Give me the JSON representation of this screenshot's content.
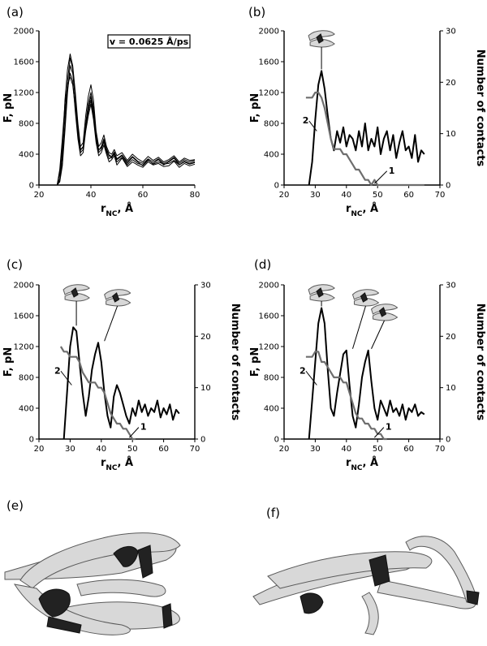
{
  "panel_labels": {
    "a": "(a)",
    "b": "(b)",
    "c": "(c)",
    "d": "(d)",
    "e": "(e)",
    "f": "(f)"
  },
  "velocity_label": "v = 0.0625 Å/ps",
  "curve_labels": {
    "one": "1",
    "two": "2"
  },
  "chart_data": [
    {
      "id": "a",
      "type": "line",
      "ylabel": "F, pN",
      "xlabel": "r_NC, Å",
      "xlim": [
        20,
        80
      ],
      "ylim": [
        0,
        2000
      ],
      "xticks": [
        20,
        40,
        60,
        80
      ],
      "yticks": [
        0,
        400,
        800,
        1200,
        1600,
        2000
      ],
      "annotation": "v = 0.0625 Å/ps",
      "series": [
        {
          "x": [
            27,
            28,
            29,
            30,
            31,
            32,
            33,
            34,
            35,
            36,
            37,
            38,
            39,
            40,
            41,
            42,
            43,
            44,
            45,
            46,
            47,
            48,
            49,
            50,
            52,
            54,
            56,
            58,
            60,
            62,
            64,
            66,
            68,
            70,
            72,
            74,
            76,
            78,
            80
          ],
          "y": [
            0,
            50,
            300,
            800,
            1350,
            1650,
            1500,
            1100,
            700,
            450,
            500,
            800,
            1050,
            1200,
            1000,
            650,
            450,
            500,
            600,
            450,
            380,
            350,
            420,
            330,
            380,
            280,
            360,
            300,
            250,
            320,
            280,
            330,
            260,
            300,
            350,
            260,
            310,
            280,
            300
          ]
        },
        {
          "x": [
            27,
            28,
            29,
            30,
            31,
            32,
            33,
            34,
            35,
            36,
            37,
            38,
            39,
            40,
            41,
            42,
            43,
            44,
            45,
            46,
            47,
            48,
            49,
            50,
            52,
            54,
            56,
            58,
            60,
            62,
            64,
            66,
            68,
            70,
            72,
            74,
            76,
            78,
            80
          ],
          "y": [
            0,
            150,
            500,
            950,
            1250,
            1450,
            1350,
            950,
            600,
            380,
            420,
            700,
            900,
            1050,
            850,
            550,
            380,
            420,
            520,
            400,
            300,
            330,
            380,
            260,
            350,
            240,
            300,
            260,
            230,
            300,
            260,
            280,
            240,
            250,
            310,
            230,
            280,
            250,
            270
          ]
        },
        {
          "x": [
            27,
            28,
            29,
            30,
            31,
            32,
            33,
            34,
            35,
            36,
            37,
            38,
            39,
            40,
            41,
            42,
            43,
            44,
            45,
            46,
            47,
            48,
            49,
            50,
            52,
            54,
            56,
            58,
            60,
            62,
            64,
            66,
            68,
            70,
            72,
            74,
            76,
            78,
            80
          ],
          "y": [
            0,
            80,
            400,
            1100,
            1500,
            1700,
            1550,
            1200,
            800,
            500,
            550,
            900,
            1150,
            1300,
            1100,
            700,
            500,
            550,
            650,
            500,
            420,
            400,
            460,
            380,
            420,
            320,
            400,
            340,
            300,
            370,
            320,
            360,
            300,
            330,
            380,
            300,
            350,
            320,
            330
          ]
        },
        {
          "x": [
            27,
            28,
            29,
            30,
            31,
            32,
            33,
            34,
            35,
            36,
            37,
            38,
            39,
            40,
            41,
            42,
            43,
            44,
            45,
            46,
            47,
            48,
            49,
            50,
            52,
            54,
            56,
            58,
            60,
            62,
            64,
            66,
            68,
            70,
            72,
            74,
            76,
            78,
            80
          ],
          "y": [
            0,
            200,
            600,
            1050,
            1300,
            1400,
            1300,
            1000,
            650,
            420,
            460,
            750,
            950,
            1100,
            900,
            600,
            420,
            460,
            560,
            430,
            340,
            360,
            400,
            300,
            360,
            260,
            330,
            280,
            260,
            330,
            270,
            300,
            270,
            280,
            320,
            260,
            300,
            270,
            290
          ]
        },
        {
          "x": [
            27,
            28,
            29,
            30,
            31,
            32,
            33,
            34,
            35,
            36,
            37,
            38,
            39,
            40,
            41,
            42,
            43,
            44,
            45,
            46,
            47,
            48,
            49,
            50,
            52,
            54,
            56,
            58,
            60,
            62,
            64,
            66,
            68,
            70,
            72,
            74,
            76,
            78,
            80
          ],
          "y": [
            0,
            40,
            250,
            700,
            1200,
            1550,
            1450,
            1150,
            760,
            470,
            480,
            780,
            1000,
            1150,
            950,
            620,
            460,
            480,
            580,
            470,
            390,
            370,
            430,
            340,
            390,
            300,
            370,
            310,
            280,
            340,
            300,
            340,
            280,
            310,
            360,
            280,
            330,
            300,
            320
          ]
        }
      ]
    },
    {
      "id": "b",
      "type": "line",
      "ylabel": "F, pN",
      "y2label": "Number of contacts",
      "xlabel": "r_NC, Å",
      "xlim": [
        20,
        70
      ],
      "ylim": [
        0,
        2000
      ],
      "y2lim": [
        0,
        30
      ],
      "xticks": [
        20,
        30,
        40,
        50,
        60,
        70
      ],
      "yticks": [
        0,
        400,
        800,
        1200,
        1600,
        2000
      ],
      "y2ticks": [
        0,
        10,
        20,
        30
      ],
      "series": [
        {
          "name": "2",
          "axis": "left",
          "x": [
            28,
            29,
            30,
            31,
            32,
            33,
            34,
            35,
            36,
            37,
            38,
            39,
            40,
            41,
            42,
            43,
            44,
            45,
            46,
            47,
            48,
            49,
            50,
            51,
            52,
            53,
            54,
            55,
            56,
            57,
            58,
            59,
            60,
            61,
            62,
            63,
            64,
            65
          ],
          "y": [
            0,
            300,
            850,
            1300,
            1480,
            1250,
            900,
            600,
            450,
            700,
            550,
            750,
            500,
            650,
            600,
            450,
            700,
            500,
            800,
            450,
            600,
            500,
            750,
            400,
            600,
            700,
            450,
            650,
            350,
            550,
            700,
            450,
            500,
            350,
            650,
            300,
            450,
            400
          ]
        },
        {
          "name": "1",
          "axis": "right",
          "x": [
            27,
            28,
            29,
            30,
            31,
            32,
            33,
            34,
            35,
            36,
            37,
            38,
            39,
            40,
            41,
            42,
            43,
            44,
            45,
            46,
            47,
            48,
            49,
            50,
            52,
            55,
            60,
            65
          ],
          "y": [
            17,
            17,
            17,
            18,
            18,
            17,
            15,
            12,
            9,
            7,
            7,
            7,
            6,
            6,
            5,
            4,
            3,
            3,
            2,
            1,
            1,
            0,
            1,
            0,
            0,
            0,
            0,
            0
          ]
        }
      ]
    },
    {
      "id": "c",
      "type": "line",
      "ylabel": "F, pN",
      "y2label": "Number of contacts",
      "xlabel": "r_NC, Å",
      "xlim": [
        20,
        70
      ],
      "ylim": [
        0,
        2000
      ],
      "y2lim": [
        0,
        30
      ],
      "xticks": [
        20,
        30,
        40,
        50,
        60,
        70
      ],
      "yticks": [
        0,
        400,
        800,
        1200,
        1600,
        2000
      ],
      "y2ticks": [
        0,
        10,
        20,
        30
      ],
      "series": [
        {
          "name": "2",
          "axis": "left",
          "x": [
            28,
            29,
            30,
            31,
            32,
            33,
            34,
            35,
            36,
            37,
            38,
            39,
            40,
            41,
            42,
            43,
            44,
            45,
            46,
            47,
            48,
            49,
            50,
            51,
            52,
            53,
            54,
            55,
            56,
            57,
            58,
            59,
            60,
            61,
            62,
            63,
            64,
            65
          ],
          "y": [
            0,
            600,
            1200,
            1450,
            1400,
            1000,
            600,
            300,
            550,
            900,
            1100,
            1250,
            1000,
            600,
            300,
            150,
            550,
            700,
            600,
            450,
            300,
            200,
            400,
            300,
            500,
            350,
            450,
            300,
            400,
            350,
            500,
            280,
            400,
            320,
            450,
            250,
            380,
            330
          ]
        },
        {
          "name": "1",
          "axis": "right",
          "x": [
            27,
            28,
            29,
            30,
            31,
            32,
            33,
            34,
            35,
            36,
            37,
            38,
            39,
            40,
            41,
            42,
            43,
            44,
            45,
            46,
            47,
            48,
            49,
            50,
            51
          ],
          "y": [
            18,
            17,
            17,
            16,
            16,
            16,
            15,
            13,
            12,
            11,
            11,
            11,
            10,
            10,
            9,
            7,
            5,
            4,
            3,
            3,
            2,
            2,
            1,
            0,
            0
          ]
        }
      ]
    },
    {
      "id": "d",
      "type": "line",
      "ylabel": "F, pN",
      "y2label": "Number of contacts",
      "xlabel": "r_NC, Å",
      "xlim": [
        20,
        70
      ],
      "ylim": [
        0,
        2000
      ],
      "y2lim": [
        0,
        30
      ],
      "xticks": [
        20,
        30,
        40,
        50,
        60,
        70
      ],
      "yticks": [
        0,
        400,
        800,
        1200,
        1600,
        2000
      ],
      "y2ticks": [
        0,
        10,
        20,
        30
      ],
      "series": [
        {
          "name": "2",
          "axis": "left",
          "x": [
            28,
            29,
            30,
            31,
            32,
            33,
            34,
            35,
            36,
            37,
            38,
            39,
            40,
            41,
            42,
            43,
            44,
            45,
            46,
            47,
            48,
            49,
            50,
            51,
            52,
            53,
            54,
            55,
            56,
            57,
            58,
            59,
            60,
            61,
            62,
            63,
            64,
            65
          ],
          "y": [
            0,
            500,
            1000,
            1500,
            1700,
            1500,
            900,
            400,
            300,
            600,
            850,
            1100,
            1150,
            700,
            300,
            150,
            450,
            800,
            1000,
            1150,
            750,
            400,
            250,
            500,
            400,
            300,
            500,
            350,
            400,
            300,
            450,
            250,
            400,
            350,
            450,
            300,
            350,
            320
          ]
        },
        {
          "name": "1",
          "axis": "right",
          "x": [
            27,
            28,
            29,
            30,
            31,
            32,
            33,
            34,
            35,
            36,
            37,
            38,
            39,
            40,
            41,
            42,
            43,
            44,
            45,
            46,
            47,
            48,
            49,
            50,
            51,
            52,
            53
          ],
          "y": [
            16,
            16,
            16,
            17,
            17,
            15,
            15,
            14,
            13,
            12,
            12,
            12,
            11,
            11,
            9,
            7,
            5,
            4,
            4,
            3,
            3,
            2,
            2,
            1,
            1,
            0,
            0
          ]
        }
      ]
    }
  ]
}
